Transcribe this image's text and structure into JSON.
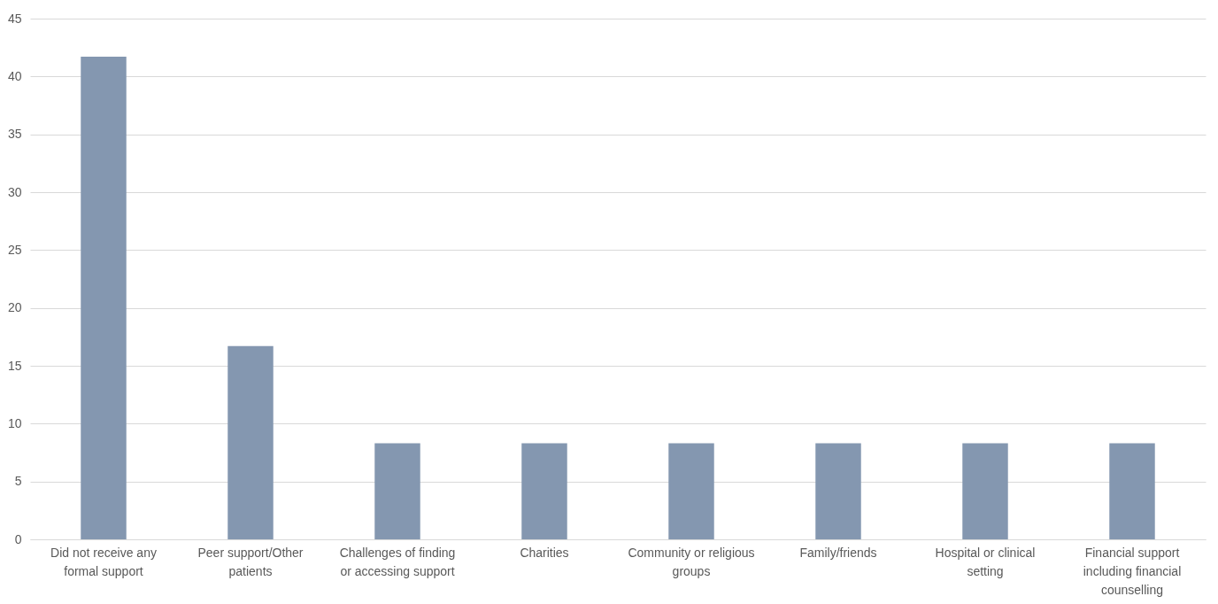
{
  "chart_data": {
    "type": "bar",
    "categories": [
      "Did not receive any formal support",
      "Peer support/Other patients",
      "Challenges of finding or accessing support",
      "Charities",
      "Community or religious groups",
      "Family/friends",
      "Hospital or clinical setting",
      "Financial support including financial counselling"
    ],
    "values": [
      41.7,
      16.7,
      8.3,
      8.3,
      8.3,
      8.3,
      8.3,
      8.3
    ],
    "color": "#8497b0",
    "ylim": [
      0,
      45
    ],
    "yticks": [
      0,
      5,
      10,
      15,
      20,
      25,
      30,
      35,
      40,
      45
    ],
    "grid": "y"
  }
}
